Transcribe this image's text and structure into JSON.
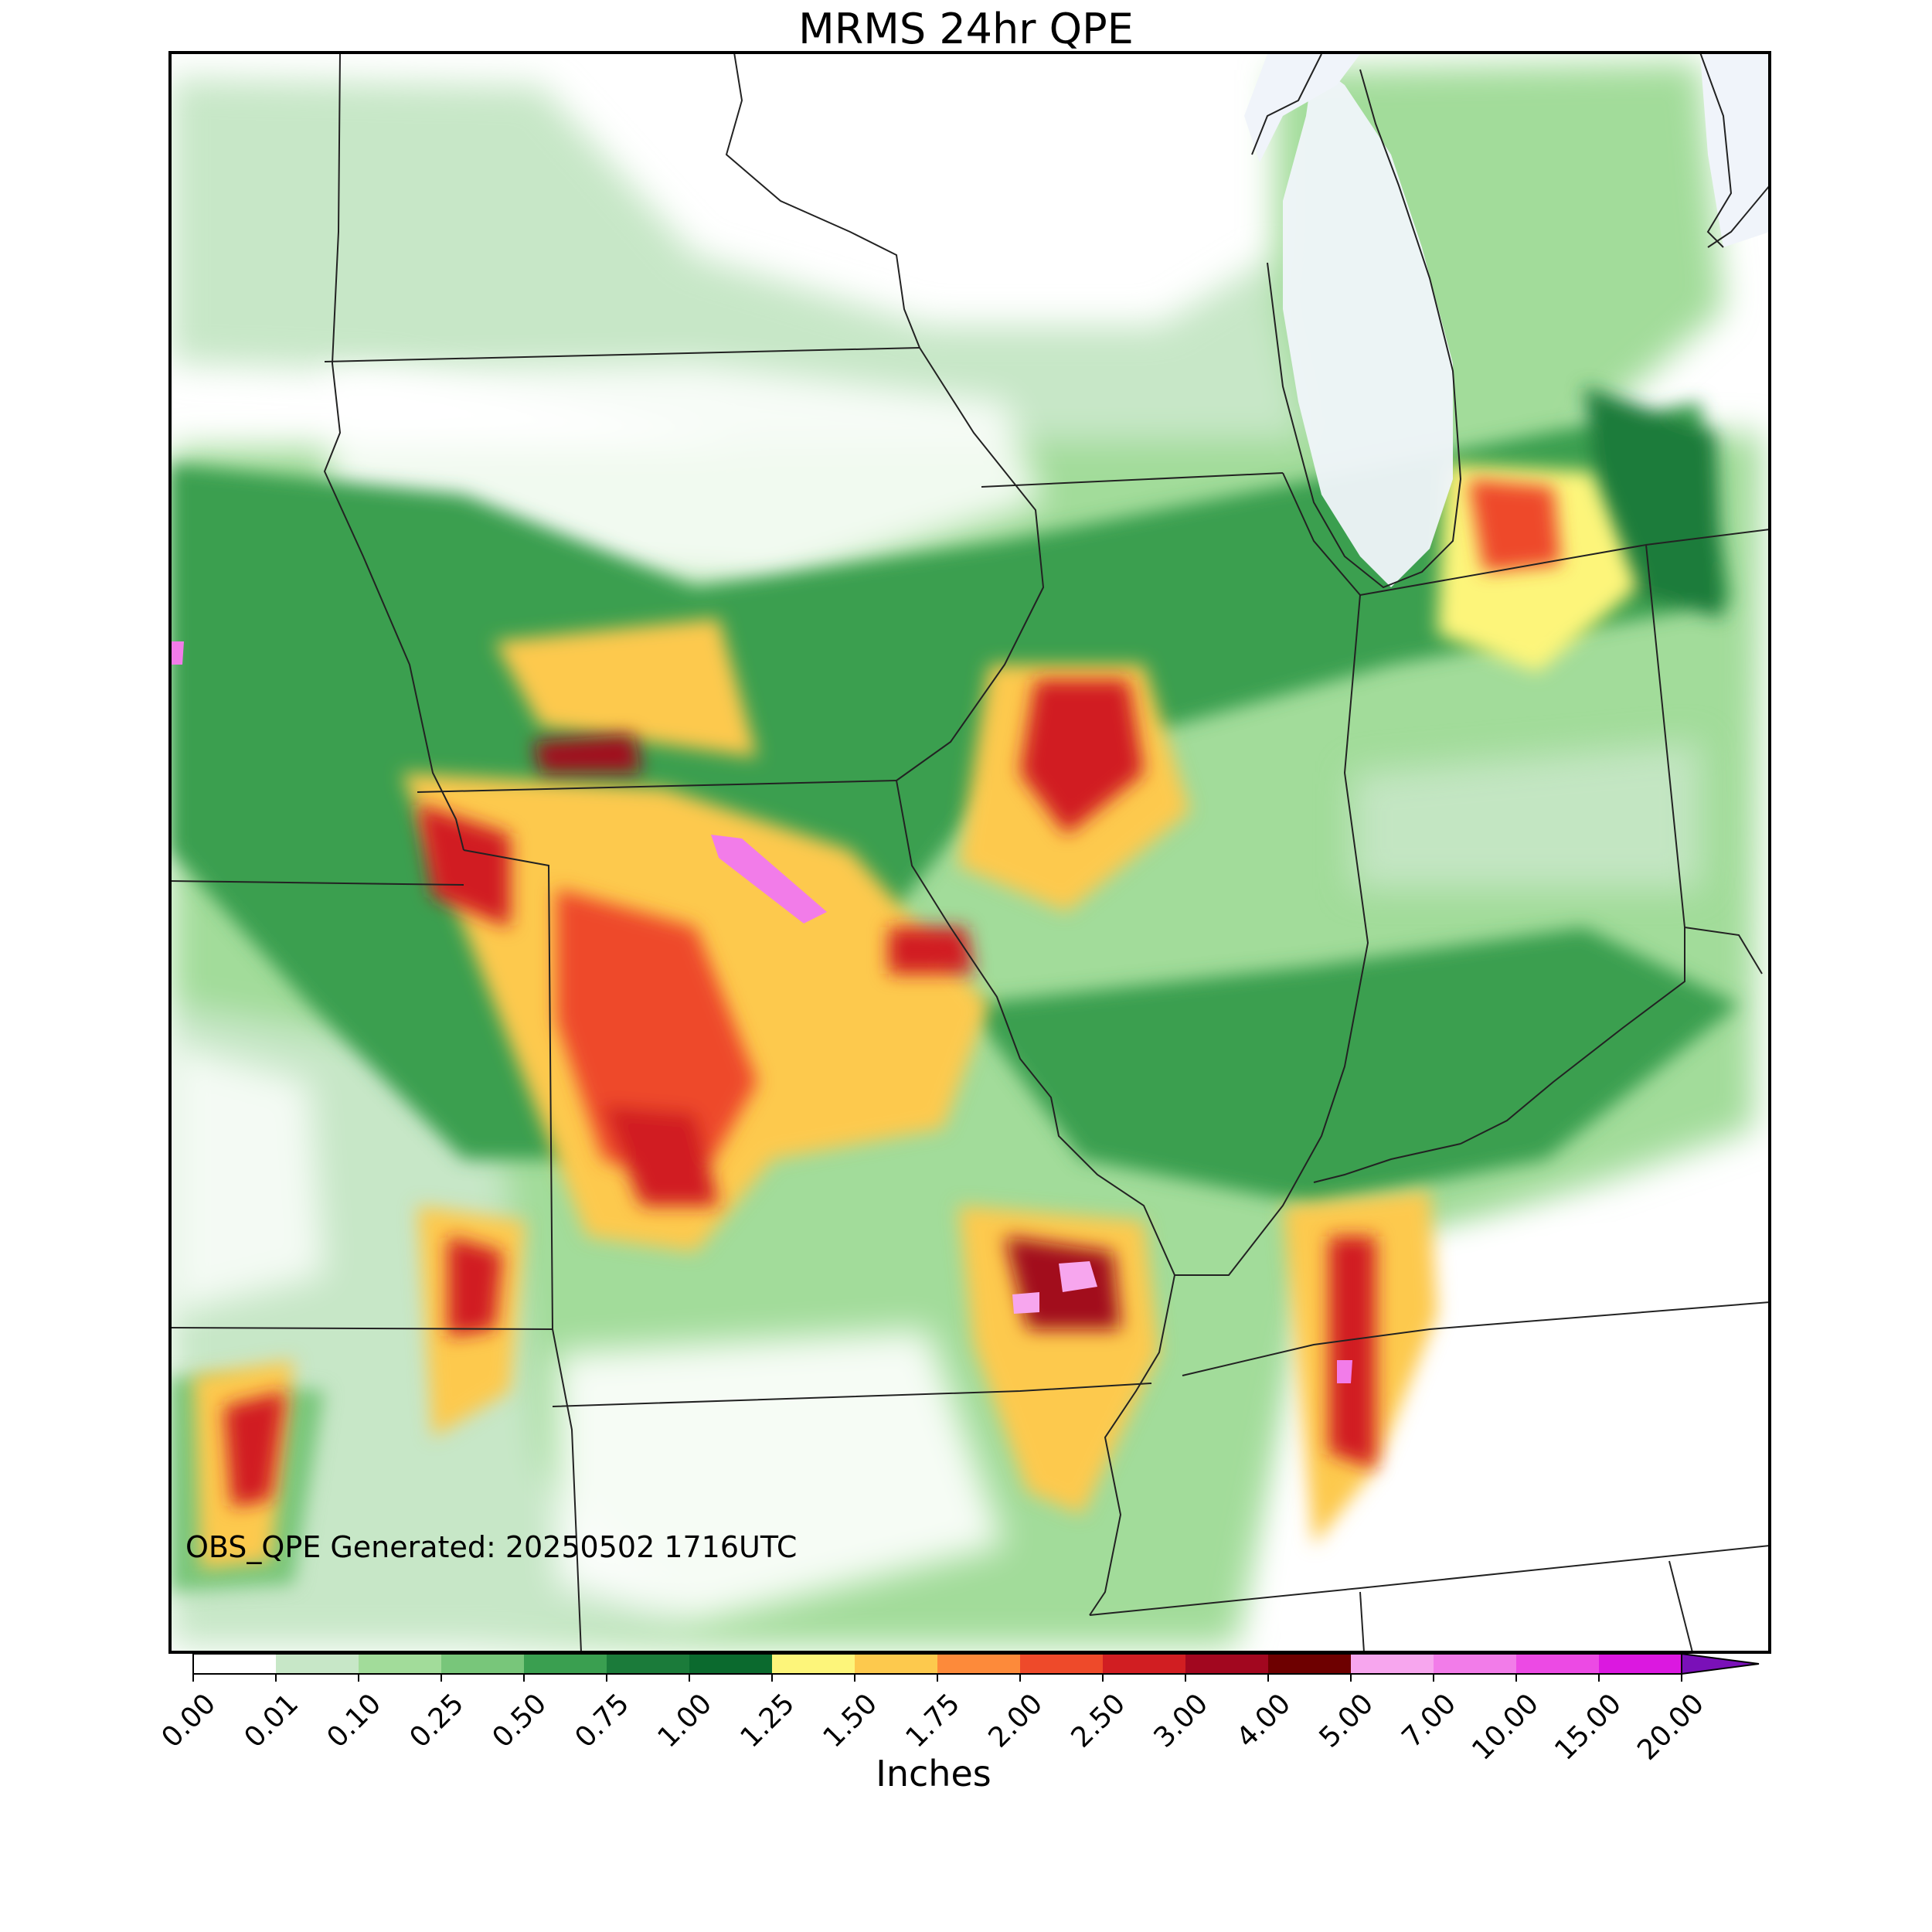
{
  "title": "MRMS 24hr QPE",
  "generated_text": "OBS_QPE Generated: 20250502 1716UTC",
  "colorbar": {
    "label": "Inches",
    "ticks": [
      "0.00",
      "0.01",
      "0.10",
      "0.25",
      "0.50",
      "0.75",
      "1.00",
      "1.25",
      "1.50",
      "1.75",
      "2.00",
      "2.50",
      "3.00",
      "4.00",
      "5.00",
      "7.00",
      "10.00",
      "15.00",
      "20.00"
    ],
    "colors": [
      "#ffffff",
      "#c7e7c7",
      "#a2dc9a",
      "#78c67a",
      "#3a9f50",
      "#1b7b3a",
      "#0b6a2e",
      "#fdf57a",
      "#fdc94d",
      "#fd8a3a",
      "#ee4a2a",
      "#d11e22",
      "#a2071f",
      "#6e0000",
      "#f7a6ee",
      "#f27ce9",
      "#ec4ae4",
      "#db18e0",
      "#9a18c8"
    ],
    "extend_color": "#7a10b8"
  },
  "colors": {
    "frame": "#000000",
    "boundary": "#222222",
    "lake": "#f0f4fa"
  }
}
